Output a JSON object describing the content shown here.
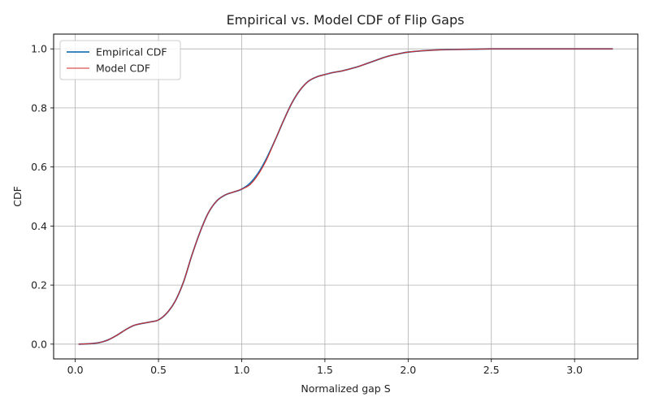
{
  "chart_data": {
    "type": "line",
    "title": "Empirical vs. Model CDF of Flip Gaps",
    "xlabel": "Normalized gap S",
    "ylabel": "CDF",
    "xlim": [
      -0.13,
      3.38
    ],
    "ylim": [
      -0.05,
      1.05
    ],
    "xticks": [
      0.0,
      0.5,
      1.0,
      1.5,
      2.0,
      2.5,
      3.0
    ],
    "xtick_labels": [
      "0.0",
      "0.5",
      "1.0",
      "1.5",
      "2.0",
      "2.5",
      "3.0"
    ],
    "yticks": [
      0.0,
      0.2,
      0.4,
      0.6,
      0.8,
      1.0
    ],
    "ytick_labels": [
      "0.0",
      "0.2",
      "0.4",
      "0.6",
      "0.8",
      "1.0"
    ],
    "grid": true,
    "legend_position": "top-left",
    "series": [
      {
        "name": "Empirical CDF",
        "color": "#1f77b4",
        "x": [
          0.02,
          0.1,
          0.15,
          0.2,
          0.25,
          0.3,
          0.35,
          0.4,
          0.45,
          0.5,
          0.55,
          0.6,
          0.65,
          0.7,
          0.75,
          0.8,
          0.85,
          0.9,
          0.95,
          1.0,
          1.05,
          1.1,
          1.15,
          1.2,
          1.25,
          1.3,
          1.35,
          1.4,
          1.45,
          1.5,
          1.55,
          1.6,
          1.65,
          1.7,
          1.75,
          1.8,
          1.85,
          1.9,
          1.95,
          2.0,
          2.1,
          2.2,
          2.3,
          2.4,
          2.5,
          2.7,
          3.0,
          3.23
        ],
        "y": [
          0.0,
          0.002,
          0.006,
          0.015,
          0.03,
          0.048,
          0.063,
          0.07,
          0.075,
          0.082,
          0.105,
          0.145,
          0.21,
          0.3,
          0.38,
          0.445,
          0.485,
          0.505,
          0.515,
          0.525,
          0.545,
          0.58,
          0.63,
          0.69,
          0.755,
          0.815,
          0.86,
          0.89,
          0.905,
          0.913,
          0.92,
          0.925,
          0.932,
          0.94,
          0.95,
          0.96,
          0.97,
          0.978,
          0.984,
          0.989,
          0.994,
          0.997,
          0.998,
          0.999,
          1.0,
          1.0,
          1.0,
          1.0
        ]
      },
      {
        "name": "Model CDF",
        "color": "#d62728",
        "x": [
          0.02,
          0.1,
          0.15,
          0.2,
          0.25,
          0.3,
          0.35,
          0.4,
          0.45,
          0.5,
          0.55,
          0.6,
          0.65,
          0.7,
          0.75,
          0.8,
          0.85,
          0.9,
          0.95,
          1.0,
          1.05,
          1.1,
          1.15,
          1.2,
          1.25,
          1.3,
          1.35,
          1.4,
          1.45,
          1.5,
          1.55,
          1.6,
          1.65,
          1.7,
          1.75,
          1.8,
          1.85,
          1.9,
          1.95,
          2.0,
          2.1,
          2.2,
          2.3,
          2.4,
          2.5,
          2.7,
          3.0,
          3.23
        ],
        "y": [
          0.0,
          0.002,
          0.006,
          0.015,
          0.03,
          0.048,
          0.063,
          0.07,
          0.075,
          0.082,
          0.105,
          0.145,
          0.21,
          0.3,
          0.38,
          0.445,
          0.485,
          0.505,
          0.515,
          0.525,
          0.54,
          0.575,
          0.625,
          0.69,
          0.755,
          0.815,
          0.86,
          0.89,
          0.905,
          0.913,
          0.92,
          0.925,
          0.932,
          0.94,
          0.95,
          0.96,
          0.97,
          0.978,
          0.984,
          0.989,
          0.994,
          0.997,
          0.998,
          0.999,
          1.0,
          1.0,
          1.0,
          1.0
        ]
      }
    ]
  }
}
